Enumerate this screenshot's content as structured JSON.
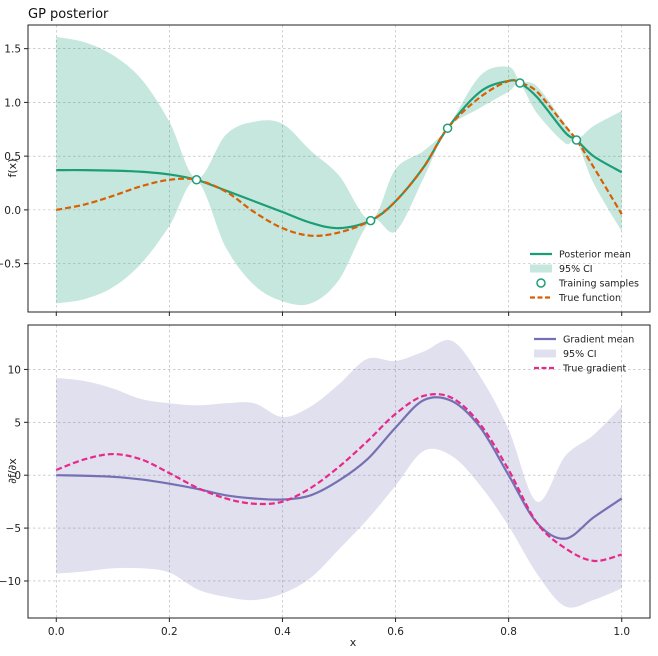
{
  "chart_data": [
    {
      "type": "line",
      "title": "GP posterior",
      "xlabel": "",
      "ylabel": "f(x)",
      "xlim": [
        -0.05,
        1.05
      ],
      "ylim": [
        -0.95,
        1.72
      ],
      "xticks": [
        0.0,
        0.2,
        0.4,
        0.6,
        0.8,
        1.0
      ],
      "xtick_labels": [
        "",
        "",
        "",
        "",
        "",
        ""
      ],
      "yticks": [
        -0.5,
        0.0,
        0.5,
        1.0,
        1.5
      ],
      "ytick_labels": [
        "−0.5",
        "0.0",
        "0.5",
        "1.0",
        "1.5"
      ],
      "x": [
        0.0,
        0.05,
        0.1,
        0.15,
        0.2,
        0.248,
        0.3,
        0.35,
        0.4,
        0.45,
        0.5,
        0.556,
        0.6,
        0.65,
        0.692,
        0.75,
        0.8,
        0.82,
        0.85,
        0.9,
        0.92,
        0.95,
        1.0
      ],
      "series": [
        {
          "name": "Posterior mean",
          "kind": "line",
          "color": "#1b9e77",
          "values": [
            0.37,
            0.37,
            0.365,
            0.355,
            0.33,
            0.28,
            0.18,
            0.08,
            -0.02,
            -0.12,
            -0.17,
            -0.1,
            0.08,
            0.4,
            0.76,
            1.1,
            1.2,
            1.18,
            1.05,
            0.72,
            0.65,
            0.5,
            0.35
          ]
        },
        {
          "name": "95% CI",
          "kind": "band",
          "color": "#1b9e77",
          "lower": [
            -0.87,
            -0.83,
            -0.72,
            -0.5,
            -0.15,
            0.27,
            -0.35,
            -0.7,
            -0.85,
            -0.87,
            -0.65,
            -0.1,
            -0.2,
            0.3,
            0.75,
            0.95,
            1.1,
            1.17,
            0.9,
            0.62,
            0.64,
            0.25,
            -0.2
          ],
          "upper": [
            1.61,
            1.56,
            1.44,
            1.22,
            0.82,
            0.29,
            0.7,
            0.82,
            0.8,
            0.55,
            0.32,
            -0.09,
            0.38,
            0.55,
            0.77,
            1.25,
            1.33,
            1.2,
            1.15,
            0.8,
            0.66,
            0.78,
            0.92
          ]
        },
        {
          "name": "Training samples",
          "kind": "points",
          "color": "#1b9e77",
          "points": [
            [
              0.248,
              0.28
            ],
            [
              0.556,
              -0.1
            ],
            [
              0.692,
              0.76
            ],
            [
              0.82,
              1.18
            ],
            [
              0.92,
              0.65
            ]
          ]
        },
        {
          "name": "True function",
          "kind": "dashed",
          "color": "#d95f02",
          "values": [
            0.0,
            0.05,
            0.13,
            0.22,
            0.28,
            0.28,
            0.17,
            -0.02,
            -0.17,
            -0.24,
            -0.21,
            -0.1,
            0.08,
            0.4,
            0.76,
            1.05,
            1.2,
            1.18,
            1.1,
            0.78,
            0.65,
            0.4,
            -0.04
          ]
        }
      ],
      "legend": [
        "Posterior mean",
        "95% CI",
        "Training samples",
        "True function"
      ],
      "legend_position": "lower-right",
      "grid": true
    },
    {
      "type": "line",
      "title": "",
      "xlabel": "x",
      "ylabel": "∂f/∂x",
      "xlim": [
        -0.05,
        1.05
      ],
      "ylim": [
        -13.5,
        14.2
      ],
      "xticks": [
        0.0,
        0.2,
        0.4,
        0.6,
        0.8,
        1.0
      ],
      "xtick_labels": [
        "0.0",
        "0.2",
        "0.4",
        "0.6",
        "0.8",
        "1.0"
      ],
      "yticks": [
        -10,
        -5,
        0,
        5,
        10
      ],
      "ytick_labels": [
        "−10",
        "−5",
        "0",
        "5",
        "10"
      ],
      "x": [
        0.0,
        0.05,
        0.1,
        0.15,
        0.2,
        0.25,
        0.3,
        0.35,
        0.4,
        0.45,
        0.5,
        0.55,
        0.6,
        0.65,
        0.7,
        0.75,
        0.8,
        0.85,
        0.9,
        0.95,
        1.0
      ],
      "series": [
        {
          "name": "Gradient mean",
          "kind": "line",
          "color": "#7570b3",
          "values": [
            0.0,
            -0.05,
            -0.15,
            -0.4,
            -0.8,
            -1.3,
            -1.9,
            -2.2,
            -2.3,
            -1.9,
            -0.5,
            1.5,
            4.5,
            7.1,
            7.0,
            4.5,
            0.0,
            -4.5,
            -6.0,
            -4.0,
            -2.2
          ]
        },
        {
          "name": "95% CI",
          "kind": "band",
          "color": "#7570b3",
          "lower": [
            -9.3,
            -9.1,
            -8.8,
            -8.8,
            -9.2,
            -10.8,
            -11.5,
            -11.8,
            -11.2,
            -9.7,
            -7.0,
            -4.2,
            -1.0,
            2.3,
            1.8,
            -1.0,
            -4.8,
            -9.3,
            -12.4,
            -11.8,
            -10.7
          ],
          "upper": [
            9.2,
            8.9,
            8.2,
            7.2,
            6.8,
            6.6,
            6.8,
            6.8,
            5.5,
            6.5,
            8.6,
            11.0,
            10.8,
            11.7,
            12.7,
            9.3,
            4.3,
            -2.5,
            1.8,
            3.8,
            6.5
          ]
        },
        {
          "name": "True gradient",
          "kind": "dashed",
          "color": "#e7298a",
          "values": [
            0.5,
            1.5,
            2.0,
            1.5,
            0.2,
            -1.2,
            -2.2,
            -2.7,
            -2.5,
            -1.2,
            0.8,
            3.2,
            5.8,
            7.5,
            7.3,
            4.8,
            0.5,
            -4.5,
            -6.9,
            -8.1,
            -7.5
          ]
        }
      ],
      "legend": [
        "Gradient mean",
        "95% CI",
        "True gradient"
      ],
      "legend_position": "upper-right",
      "grid": true
    }
  ]
}
